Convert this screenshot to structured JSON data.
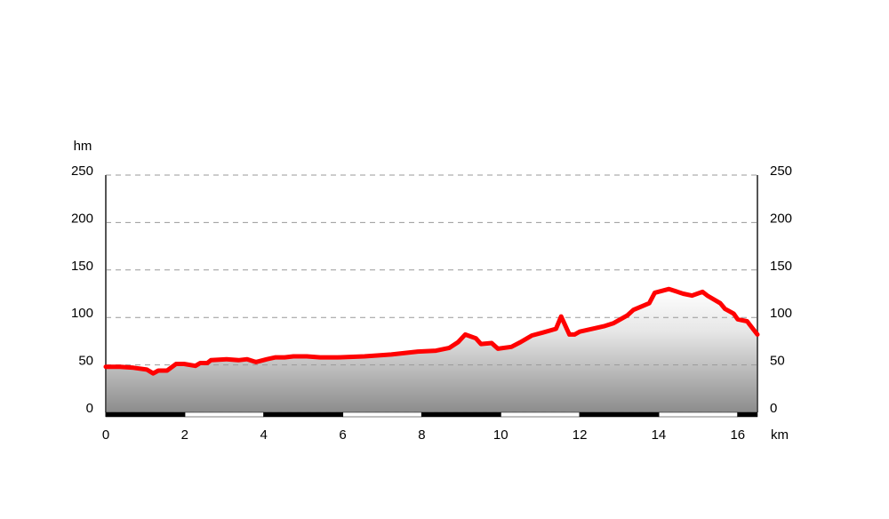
{
  "chart_data": {
    "type": "area",
    "y_label": "hm",
    "x_label": "km",
    "x": [
      0,
      0.36,
      0.7,
      1.04,
      1.2,
      1.33,
      1.55,
      1.78,
      1.98,
      2.27,
      2.39,
      2.57,
      2.66,
      3.06,
      3.36,
      3.58,
      3.8,
      4.08,
      4.3,
      4.53,
      4.75,
      5.09,
      5.43,
      5.88,
      6.55,
      7.23,
      7.9,
      8.36,
      8.7,
      8.92,
      9.1,
      9.37,
      9.5,
      9.77,
      9.93,
      10.27,
      10.5,
      10.79,
      11.06,
      11.4,
      11.53,
      11.74,
      11.87,
      12.0,
      12.64,
      12.86,
      13.2,
      13.36,
      13.76,
      13.9,
      14.26,
      14.62,
      14.84,
      15.11,
      15.23,
      15.56,
      15.68,
      15.9,
      16.0,
      16.24,
      16.35,
      16.5
    ],
    "values": [
      48,
      48,
      47,
      45,
      41,
      44,
      44,
      51,
      51,
      49,
      52,
      52,
      55,
      56,
      55,
      56,
      53,
      56,
      58,
      58,
      59,
      59,
      58,
      58,
      59,
      61,
      64,
      65,
      68,
      74,
      82,
      78,
      72,
      73,
      67,
      69,
      74,
      81,
      84,
      88,
      101,
      82,
      82,
      85,
      91,
      94,
      102,
      108,
      115,
      126,
      130,
      125,
      123,
      127,
      123,
      115,
      109,
      104,
      98,
      96,
      90,
      82
    ],
    "color": "#ff0000",
    "xlim": [
      0,
      16.5
    ],
    "xticks": [
      0,
      2,
      4,
      6,
      8,
      10,
      12,
      14,
      16
    ],
    "ylim": [
      0,
      250
    ],
    "yticks": [
      0,
      50,
      100,
      150,
      200,
      250
    ],
    "grid": true
  }
}
